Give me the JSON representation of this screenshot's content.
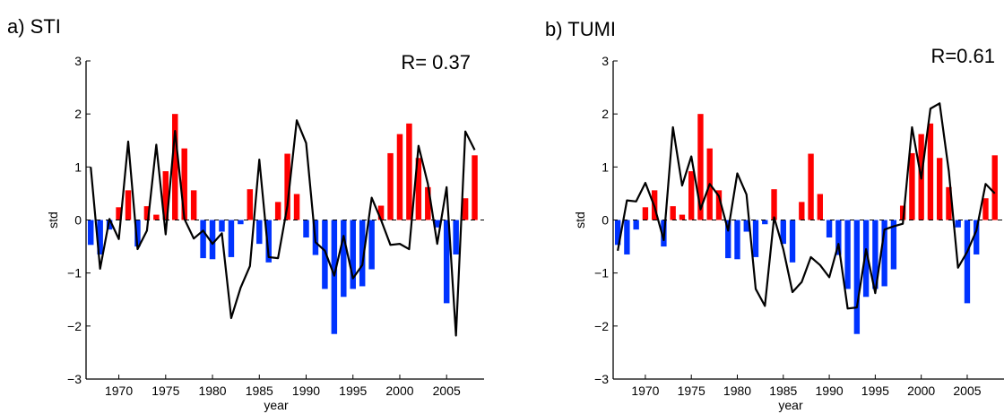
{
  "colors": {
    "positive_bar": "#ff0000",
    "negative_bar": "#0033ff",
    "line": "#000000"
  },
  "chart_data": [
    {
      "panel": "a",
      "type": "bar",
      "title": "a) STI",
      "annotation": "R= 0.37",
      "xlabel": "year",
      "ylabel": "std",
      "xlim": [
        1966.5,
        2009
      ],
      "ylim": [
        -3,
        3
      ],
      "xticks": [
        "1970",
        "1975",
        "1980",
        "1985",
        "1990",
        "1995",
        "2000",
        "2005"
      ],
      "yticks": [
        "3",
        "2",
        "1",
        "0",
        "−1",
        "−2",
        "−3"
      ],
      "years": [
        1967,
        1968,
        1969,
        1970,
        1971,
        1972,
        1973,
        1974,
        1975,
        1976,
        1977,
        1978,
        1979,
        1980,
        1981,
        1982,
        1983,
        1984,
        1985,
        1986,
        1987,
        1988,
        1989,
        1990,
        1991,
        1992,
        1993,
        1994,
        1995,
        1996,
        1997,
        1998,
        1999,
        2000,
        2001,
        2002,
        2003,
        2004,
        2005,
        2006,
        2007,
        2008
      ],
      "bar_values": [
        -0.47,
        -0.65,
        -0.18,
        0.24,
        0.56,
        -0.5,
        0.26,
        0.1,
        0.92,
        2.0,
        1.35,
        0.56,
        -0.72,
        -0.74,
        -0.22,
        -0.7,
        -0.08,
        0.58,
        -0.45,
        -0.8,
        0.34,
        1.25,
        0.49,
        -0.33,
        -0.66,
        -1.3,
        -2.15,
        -1.45,
        -1.3,
        -1.25,
        -0.93,
        0.27,
        1.26,
        1.62,
        1.82,
        1.17,
        0.62,
        -0.14,
        -1.57,
        -0.65,
        0.41,
        1.22
      ],
      "line_values": [
        1.0,
        -0.92,
        0.02,
        -0.36,
        1.48,
        -0.55,
        -0.2,
        1.42,
        -0.27,
        1.68,
        0.02,
        -0.35,
        -0.2,
        -0.45,
        -0.25,
        -1.85,
        -1.28,
        -0.87,
        1.14,
        -0.7,
        -0.72,
        0.27,
        1.88,
        1.45,
        -0.42,
        -0.58,
        -1.05,
        -0.3,
        -1.1,
        -0.85,
        0.42,
        0.0,
        -0.47,
        -0.45,
        -0.55,
        1.4,
        0.68,
        -0.45,
        0.62,
        -2.18,
        1.67,
        1.32
      ]
    },
    {
      "panel": "b",
      "type": "bar",
      "title": "b) TUMI",
      "annotation": "R=0.61",
      "xlabel": "year",
      "ylabel": "std",
      "xlim": [
        1966.5,
        2009
      ],
      "ylim": [
        -3,
        3
      ],
      "xticks": [
        "1970",
        "1975",
        "1980",
        "1985",
        "1990",
        "1995",
        "2000",
        "2005"
      ],
      "yticks": [
        "3",
        "2",
        "1",
        "0",
        "−1",
        "−2",
        "−3"
      ],
      "years": [
        1967,
        1968,
        1969,
        1970,
        1971,
        1972,
        1973,
        1974,
        1975,
        1976,
        1977,
        1978,
        1979,
        1980,
        1981,
        1982,
        1983,
        1984,
        1985,
        1986,
        1987,
        1988,
        1989,
        1990,
        1991,
        1992,
        1993,
        1994,
        1995,
        1996,
        1997,
        1998,
        1999,
        2000,
        2001,
        2002,
        2003,
        2004,
        2005,
        2006,
        2007,
        2008
      ],
      "bar_values": [
        -0.47,
        -0.65,
        -0.18,
        0.24,
        0.56,
        -0.5,
        0.26,
        0.1,
        0.92,
        2.0,
        1.35,
        0.56,
        -0.72,
        -0.74,
        -0.22,
        -0.7,
        -0.08,
        0.58,
        -0.45,
        -0.8,
        0.34,
        1.25,
        0.49,
        -0.33,
        -0.66,
        -1.3,
        -2.15,
        -1.45,
        -1.3,
        -1.25,
        -0.93,
        0.27,
        1.26,
        1.62,
        1.82,
        1.17,
        0.62,
        -0.14,
        -1.57,
        -0.65,
        0.41,
        1.22
      ],
      "line_values": [
        -0.58,
        0.37,
        0.35,
        0.7,
        0.25,
        -0.38,
        1.75,
        0.65,
        1.2,
        0.2,
        0.68,
        0.45,
        -0.2,
        0.88,
        0.48,
        -1.3,
        -1.62,
        0.05,
        -0.55,
        -1.36,
        -1.17,
        -0.7,
        -0.85,
        -1.08,
        -0.45,
        -1.67,
        -1.65,
        -0.55,
        -1.38,
        -0.18,
        -0.12,
        -0.07,
        1.75,
        0.78,
        2.1,
        2.2,
        0.92,
        -0.9,
        -0.6,
        -0.2,
        0.68,
        0.5
      ]
    }
  ]
}
